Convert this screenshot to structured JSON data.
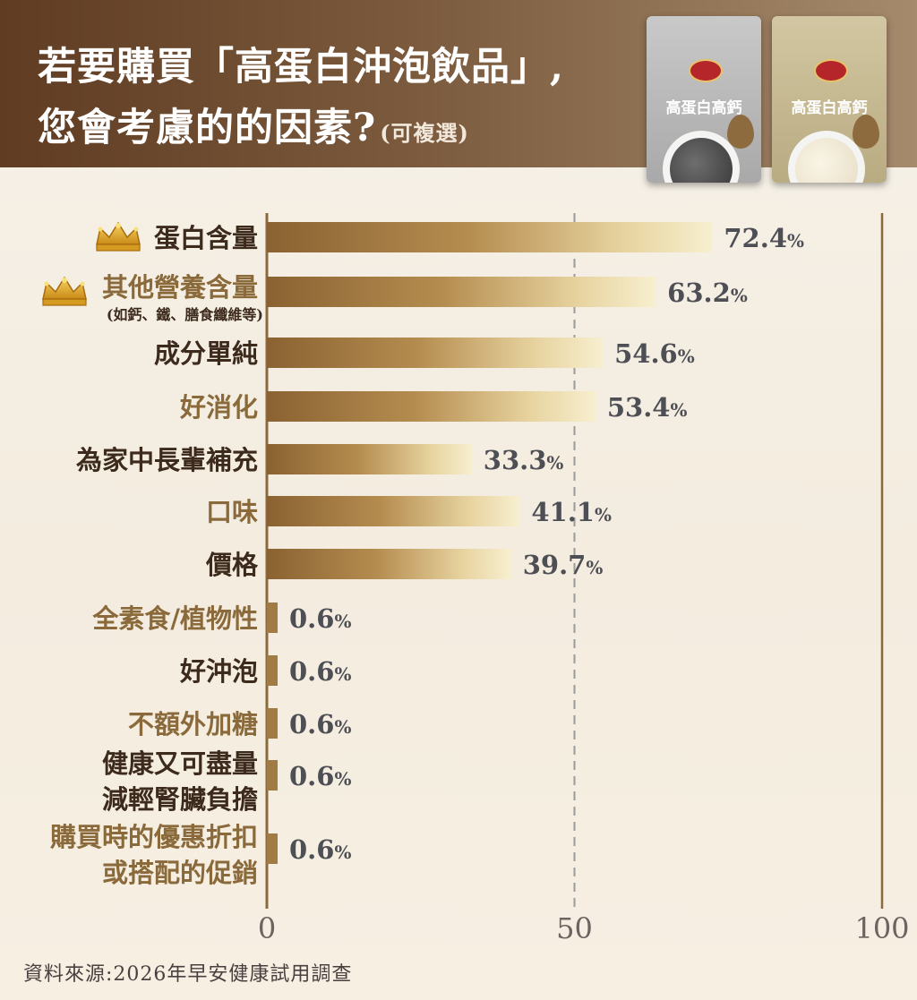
{
  "header": {
    "title_line1": "若要購買「高蛋白沖泡飲品」,",
    "title_line2": "您會考慮的的因素?",
    "subtitle": "(可複選)",
    "product_1_name": "高蛋白高鈣",
    "product_2_name": "高蛋白高鈣"
  },
  "colors": {
    "header_dark": "#5f3c22",
    "bar_dark": "#8a6232",
    "bar_light": "#f7efcf",
    "crown": "#e0a92a",
    "label_dark": "#3c2a1c",
    "label_gold": "#8a6a3b"
  },
  "chart_data": {
    "type": "bar",
    "orientation": "horizontal",
    "categories": [
      "蛋白含量",
      "其他營養含量",
      "成分單純",
      "好消化",
      "為家中長輩補充",
      "口味",
      "價格",
      "全素食/植物性",
      "好沖泡",
      "不額外加糖",
      "健康又可盡量減輕腎臟負擔",
      "購買時的優惠折扣或搭配的促銷"
    ],
    "label_lines": [
      [
        "蛋白含量"
      ],
      [
        "其他營養含量"
      ],
      [
        "成分單純"
      ],
      [
        "好消化"
      ],
      [
        "為家中長輩補充"
      ],
      [
        "口味"
      ],
      [
        "價格"
      ],
      [
        "全素食/植物性"
      ],
      [
        "好沖泡"
      ],
      [
        "不額外加糖"
      ],
      [
        "健康又可盡量",
        "減輕腎臟負擔"
      ],
      [
        "購買時的優惠折扣",
        "或搭配的促銷"
      ]
    ],
    "label_notes": [
      "",
      "(如鈣、鐵、膳食纖維等)",
      "",
      "",
      "",
      "",
      "",
      "",
      "",
      "",
      "",
      ""
    ],
    "label_style": [
      "dark",
      "gold",
      "dark",
      "gold",
      "dark",
      "gold",
      "dark",
      "gold",
      "dark",
      "gold",
      "dark",
      "gold"
    ],
    "crowned": [
      true,
      true,
      false,
      false,
      false,
      false,
      false,
      false,
      false,
      false,
      false,
      false
    ],
    "values": [
      72.4,
      63.2,
      54.6,
      53.4,
      33.3,
      41.1,
      39.7,
      0.6,
      0.6,
      0.6,
      0.6,
      0.6
    ],
    "value_suffix": "%",
    "xlim": [
      0,
      100
    ],
    "xticks": [
      0,
      50,
      100
    ],
    "reference_line": 50,
    "grid": false
  },
  "source": "資料來源:2026年早安健康試用調查"
}
